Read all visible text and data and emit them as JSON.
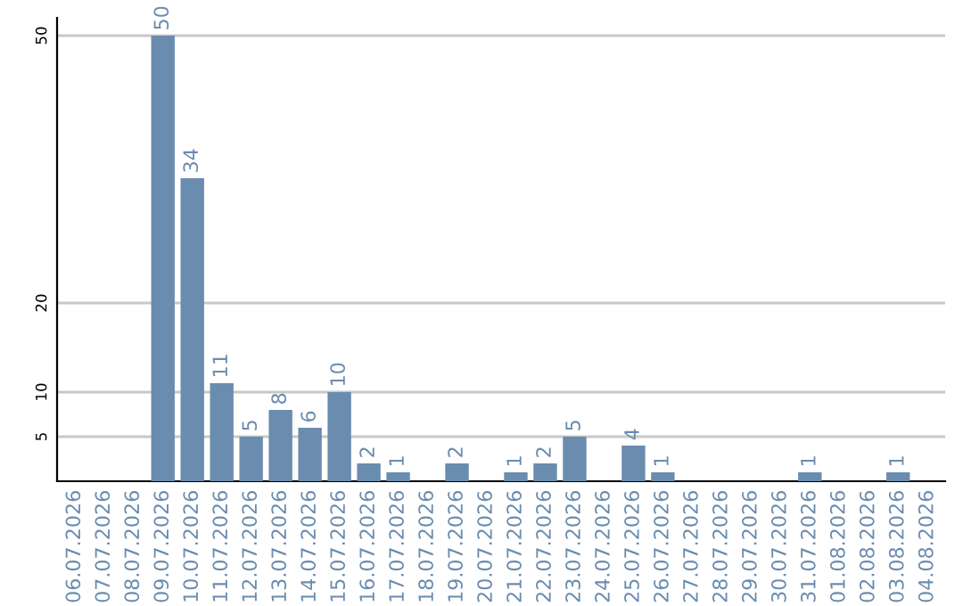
{
  "chart_data": {
    "type": "bar",
    "categories": [
      "06.07.2026",
      "07.07.2026",
      "08.07.2026",
      "09.07.2026",
      "10.07.2026",
      "11.07.2026",
      "12.07.2026",
      "13.07.2026",
      "14.07.2026",
      "15.07.2026",
      "16.07.2026",
      "17.07.2026",
      "18.07.2026",
      "19.07.2026",
      "20.07.2026",
      "21.07.2026",
      "22.07.2026",
      "23.07.2026",
      "24.07.2026",
      "25.07.2026",
      "26.07.2026",
      "27.07.2026",
      "28.07.2026",
      "29.07.2026",
      "30.07.2026",
      "31.07.2026",
      "01.08.2026",
      "02.08.2026",
      "03.08.2026",
      "04.08.2026"
    ],
    "values": [
      0,
      0,
      0,
      50,
      34,
      11,
      5,
      8,
      6,
      10,
      2,
      1,
      0,
      2,
      0,
      1,
      2,
      5,
      0,
      4,
      1,
      0,
      0,
      0,
      0,
      1,
      0,
      0,
      1,
      0
    ],
    "value_labels": [
      null,
      null,
      null,
      "50",
      "34",
      "11",
      "5",
      "8",
      "6",
      "10",
      "2",
      "1",
      null,
      "2",
      null,
      "1",
      "2",
      "5",
      null,
      "4",
      "1",
      null,
      null,
      null,
      null,
      "1",
      null,
      null,
      "1",
      null
    ],
    "color": "#6a8caf",
    "ylim": [
      0,
      52
    ],
    "yticks": [
      5,
      10,
      20,
      50
    ],
    "grid": "y"
  }
}
